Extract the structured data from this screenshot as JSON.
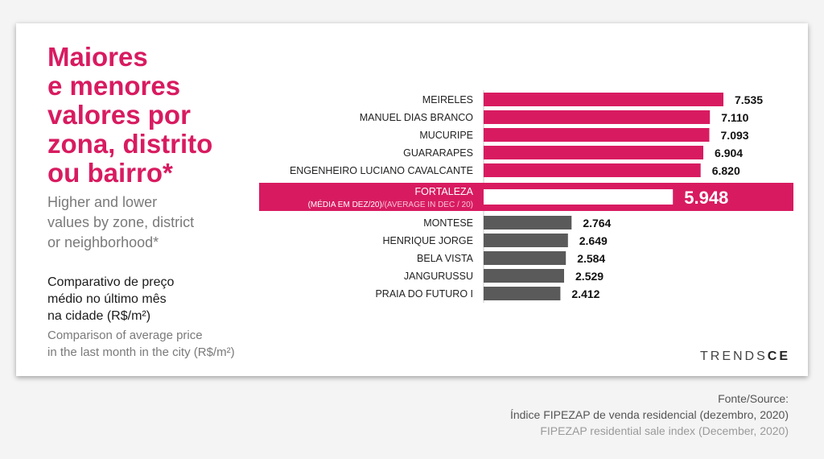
{
  "header": {
    "title_lines": [
      "Maiores",
      "e menores",
      "valores por",
      "zona, distrito",
      "ou bairro*"
    ],
    "subtitle_en_lines": [
      "Higher and lower",
      "values by zone, district",
      "or neighborhood*"
    ],
    "comparison_pt_lines": [
      "Comparativo de preço",
      "médio no último mês",
      "na cidade (R$/m²)"
    ],
    "comparison_en_lines": [
      "Comparison of average price",
      "in the last month in the city (R$/m²)"
    ]
  },
  "logo": {
    "part1": "TRENDS",
    "part2": "CE"
  },
  "source": {
    "line1": "Fonte/Source:",
    "line2": "Índice FIPEZAP de venda residencial (dezembro, 2020)",
    "line3": "FIPEZAP residential sale index (December, 2020)"
  },
  "colors": {
    "accent": "#d81b60",
    "gray_bar": "#5a5a5a",
    "white": "#ffffff"
  },
  "chart_data": {
    "type": "bar",
    "orientation": "horizontal",
    "unit": "R$/m²",
    "highlight": {
      "label": "FORTALEZA",
      "sublabel_pt": "(MÉDIA EM DEZ/20)",
      "sublabel_en": "/(AVERAGE IN DEC / 20)",
      "value": 5948,
      "value_label": "5.948"
    },
    "top": [
      {
        "label": "MEIRELES",
        "value": 7535,
        "value_label": "7.535"
      },
      {
        "label": "MANUEL DIAS BRANCO",
        "value": 7110,
        "value_label": "7.110"
      },
      {
        "label": "MUCURIPE",
        "value": 7093,
        "value_label": "7.093"
      },
      {
        "label": "GUARARAPES",
        "value": 6904,
        "value_label": "6.904"
      },
      {
        "label": "ENGENHEIRO LUCIANO CAVALCANTE",
        "value": 6820,
        "value_label": "6.820"
      }
    ],
    "bottom": [
      {
        "label": "MONTESE",
        "value": 2764,
        "value_label": "2.764"
      },
      {
        "label": "HENRIQUE JORGE",
        "value": 2649,
        "value_label": "2.649"
      },
      {
        "label": "BELA VISTA",
        "value": 2584,
        "value_label": "2.584"
      },
      {
        "label": "JANGURUSSU",
        "value": 2529,
        "value_label": "2.529"
      },
      {
        "label": "PRAIA DO FUTURO I",
        "value": 2412,
        "value_label": "2.412"
      }
    ]
  }
}
